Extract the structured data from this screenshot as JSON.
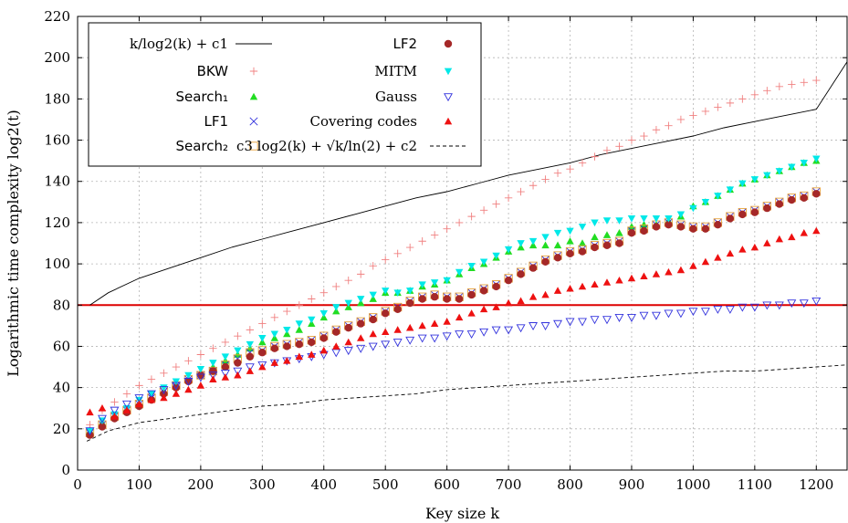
{
  "chart_data": {
    "type": "scatter",
    "xlabel": "Key size k",
    "ylabel": "Logarithmic time complexity log2(t)",
    "xlim": [
      0,
      1250
    ],
    "ylim": [
      0,
      220
    ],
    "xticks": [
      0,
      100,
      200,
      300,
      400,
      500,
      600,
      700,
      800,
      900,
      1000,
      1100,
      1200
    ],
    "yticks": [
      0,
      20,
      40,
      60,
      80,
      100,
      120,
      140,
      160,
      180,
      200,
      220
    ],
    "grid": true,
    "legend_position": "top-left",
    "threshold_line": {
      "y": 80,
      "color": "#dd0000"
    },
    "legend": [
      {
        "key": "curve_upper",
        "label": "k/log2(k) + c1"
      },
      {
        "key": "bkw",
        "label": "BKW"
      },
      {
        "key": "search1",
        "label": "Search₁"
      },
      {
        "key": "lf1",
        "label": "LF1"
      },
      {
        "key": "search2",
        "label": "Search₂"
      },
      {
        "key": "lf2",
        "label": "LF2"
      },
      {
        "key": "mitm",
        "label": "MITM"
      },
      {
        "key": "gauss",
        "label": "Gauss"
      },
      {
        "key": "covering",
        "label": "Covering codes"
      },
      {
        "key": "curve_lower",
        "label": "c3 log2(k) + √k/ln(2) + c2"
      }
    ],
    "x": [
      20,
      40,
      60,
      80,
      100,
      120,
      140,
      160,
      180,
      200,
      220,
      240,
      260,
      280,
      300,
      320,
      340,
      360,
      380,
      400,
      420,
      440,
      460,
      480,
      500,
      520,
      540,
      560,
      580,
      600,
      620,
      640,
      660,
      680,
      700,
      720,
      740,
      760,
      780,
      800,
      820,
      840,
      860,
      880,
      900,
      920,
      940,
      960,
      980,
      1000,
      1020,
      1040,
      1060,
      1080,
      1100,
      1120,
      1140,
      1160,
      1180,
      1200
    ],
    "series": [
      {
        "name": "BKW",
        "key": "bkw",
        "marker": "plus",
        "color": "#f08080",
        "values": [
          22,
          29,
          33,
          37,
          41,
          44,
          47,
          50,
          53,
          56,
          59,
          62,
          65,
          68,
          71,
          74,
          77,
          80,
          83,
          86,
          89,
          92,
          95,
          99,
          102,
          105,
          108,
          111,
          114,
          117,
          120,
          123,
          126,
          129,
          132,
          135,
          138,
          141,
          144,
          146,
          149,
          152,
          155,
          157,
          160,
          162,
          165,
          167,
          170,
          172,
          174,
          176,
          178,
          180,
          182,
          184,
          186,
          187,
          188,
          189
        ]
      },
      {
        "name": "Search₁",
        "key": "search1",
        "marker": "triangle-up",
        "color": "#22dd22",
        "values": [
          19,
          23,
          26,
          29,
          32,
          35,
          38,
          41,
          44,
          47,
          50,
          53,
          56,
          59,
          62,
          64,
          66,
          68,
          71,
          74,
          77,
          79,
          81,
          83,
          86,
          86,
          87,
          89,
          90,
          92,
          95,
          98,
          100,
          103,
          106,
          108,
          109,
          109,
          109,
          111,
          110,
          113,
          114,
          115,
          118,
          119,
          119,
          121,
          123,
          128,
          130,
          133,
          136,
          139,
          141,
          143,
          145,
          147,
          149,
          150
        ]
      },
      {
        "name": "LF1",
        "key": "lf1",
        "marker": "x",
        "color": "#3333dd",
        "values": [
          18,
          22,
          26,
          29,
          32,
          35,
          38,
          41,
          44,
          46,
          48,
          51,
          54,
          57,
          58,
          60,
          61,
          62,
          63,
          65,
          68,
          70,
          72,
          74,
          77,
          79,
          82,
          84,
          85,
          84,
          84,
          86,
          88,
          90,
          93,
          96,
          99,
          102,
          104,
          106,
          107,
          109,
          110,
          111,
          116,
          117,
          119,
          120,
          119,
          118,
          118,
          120,
          123,
          125,
          126,
          128,
          130,
          132,
          133,
          135
        ]
      },
      {
        "name": "Search₂",
        "key": "search2",
        "marker": "square",
        "color": "#e8a23a",
        "values": [
          18,
          22,
          26,
          29,
          32,
          35,
          38,
          41,
          44,
          46,
          48,
          51,
          54,
          57,
          58,
          60,
          61,
          62,
          63,
          65,
          68,
          70,
          72,
          74,
          77,
          79,
          82,
          84,
          85,
          84,
          84,
          86,
          88,
          90,
          93,
          96,
          99,
          102,
          104,
          106,
          107,
          109,
          110,
          111,
          116,
          117,
          119,
          120,
          119,
          118,
          118,
          120,
          123,
          125,
          126,
          128,
          130,
          132,
          133,
          135
        ]
      },
      {
        "name": "LF2",
        "key": "lf2",
        "marker": "circle",
        "color": "#a52828",
        "values": [
          17,
          21,
          25,
          28,
          31,
          34,
          37,
          40,
          43,
          46,
          48,
          50,
          52,
          55,
          57,
          59,
          60,
          61,
          62,
          64,
          67,
          69,
          71,
          73,
          76,
          78,
          81,
          83,
          84,
          83,
          83,
          85,
          87,
          89,
          92,
          95,
          98,
          101,
          103,
          105,
          106,
          108,
          109,
          110,
          115,
          116,
          118,
          119,
          118,
          117,
          117,
          119,
          122,
          124,
          125,
          127,
          129,
          131,
          132,
          134
        ]
      },
      {
        "name": "MITM",
        "key": "mitm",
        "marker": "triangle-down",
        "color": "#00e8e8",
        "values": [
          19,
          24,
          27,
          30,
          34,
          37,
          40,
          43,
          46,
          49,
          52,
          55,
          58,
          61,
          64,
          66,
          68,
          71,
          73,
          76,
          79,
          81,
          83,
          85,
          87,
          86,
          87,
          90,
          91,
          92,
          96,
          99,
          101,
          104,
          107,
          110,
          111,
          113,
          115,
          116,
          118,
          120,
          121,
          121,
          122,
          122,
          122,
          122,
          124,
          127,
          130,
          133,
          136,
          139,
          141,
          143,
          145,
          147,
          149,
          151
        ]
      },
      {
        "name": "Gauss",
        "key": "gauss",
        "marker": "triangle-down-open",
        "color": "#3333dd",
        "values": [
          19,
          25,
          29,
          32,
          35,
          37,
          39,
          41,
          43,
          45,
          46,
          47,
          48,
          50,
          51,
          52,
          53,
          54,
          55,
          56,
          57,
          58,
          59,
          60,
          61,
          62,
          63,
          64,
          64,
          65,
          66,
          66,
          67,
          68,
          68,
          69,
          70,
          70,
          71,
          72,
          72,
          73,
          73,
          74,
          74,
          75,
          75,
          76,
          76,
          77,
          77,
          78,
          78,
          79,
          79,
          80,
          80,
          81,
          81,
          82
        ]
      },
      {
        "name": "Covering codes",
        "key": "covering",
        "marker": "triangle-up",
        "color": "#ee1111",
        "values": [
          28,
          30,
          26,
          29,
          32,
          34,
          35,
          37,
          39,
          41,
          44,
          45,
          46,
          48,
          50,
          52,
          53,
          55,
          56,
          58,
          60,
          62,
          64,
          66,
          67,
          68,
          69,
          70,
          71,
          72,
          74,
          76,
          78,
          79,
          81,
          82,
          84,
          85,
          87,
          88,
          89,
          90,
          91,
          92,
          93,
          94,
          95,
          96,
          97,
          99,
          101,
          103,
          105,
          107,
          108,
          110,
          112,
          113,
          115,
          116
        ]
      }
    ],
    "curves": [
      {
        "key": "curve_upper",
        "style": "solid",
        "color": "#000000",
        "x": [
          20,
          50,
          100,
          150,
          200,
          250,
          300,
          350,
          400,
          450,
          500,
          550,
          600,
          650,
          700,
          750,
          800,
          850,
          900,
          950,
          1000,
          1050,
          1100,
          1150,
          1200,
          1250
        ],
        "y": [
          80,
          86,
          93,
          98,
          103,
          108,
          112,
          116,
          120,
          124,
          128,
          132,
          135,
          139,
          143,
          146,
          149,
          153,
          156,
          159,
          162,
          166,
          169,
          172,
          175,
          198
        ]
      },
      {
        "key": "curve_lower",
        "style": "dashed",
        "color": "#000000",
        "x": [
          15,
          50,
          100,
          150,
          200,
          250,
          300,
          350,
          400,
          450,
          500,
          550,
          600,
          650,
          700,
          750,
          800,
          850,
          900,
          950,
          1000,
          1050,
          1100,
          1150,
          1200,
          1250
        ],
        "y": [
          14,
          19,
          23,
          25,
          27,
          29,
          31,
          32,
          34,
          35,
          36,
          37,
          39,
          40,
          41,
          42,
          43,
          44,
          45,
          46,
          47,
          48,
          48,
          49,
          50,
          51
        ]
      }
    ]
  }
}
